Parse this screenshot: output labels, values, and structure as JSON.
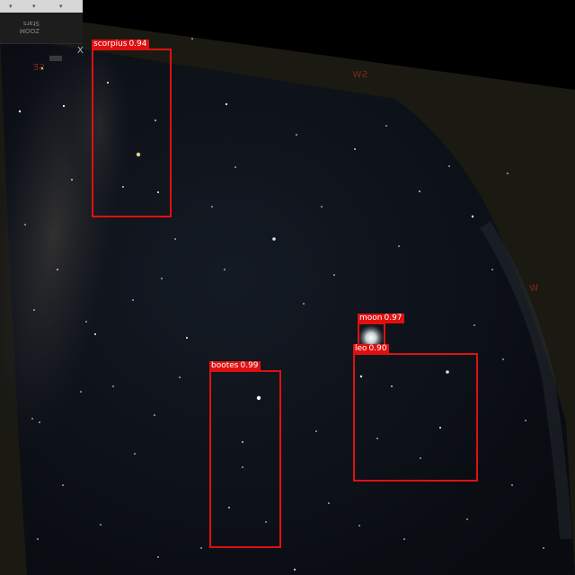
{
  "app": {
    "panel_text_lines": [
      "ZOOM",
      "Stars"
    ],
    "panel_ticks": [
      "▾",
      "▾",
      "▾"
    ],
    "close_label": "X"
  },
  "compass": {
    "se": "SE",
    "sw": "SW",
    "w": "W"
  },
  "detections": [
    {
      "label": "scorpius",
      "score": "0.94"
    },
    {
      "label": "moon",
      "score": "0.97"
    },
    {
      "label": "leo",
      "score": "0.90"
    },
    {
      "label": "bootes",
      "score": "0.99"
    }
  ],
  "colors": {
    "box": "#e01010",
    "sky": "#0d1118",
    "horizon": "#1b1a12"
  }
}
